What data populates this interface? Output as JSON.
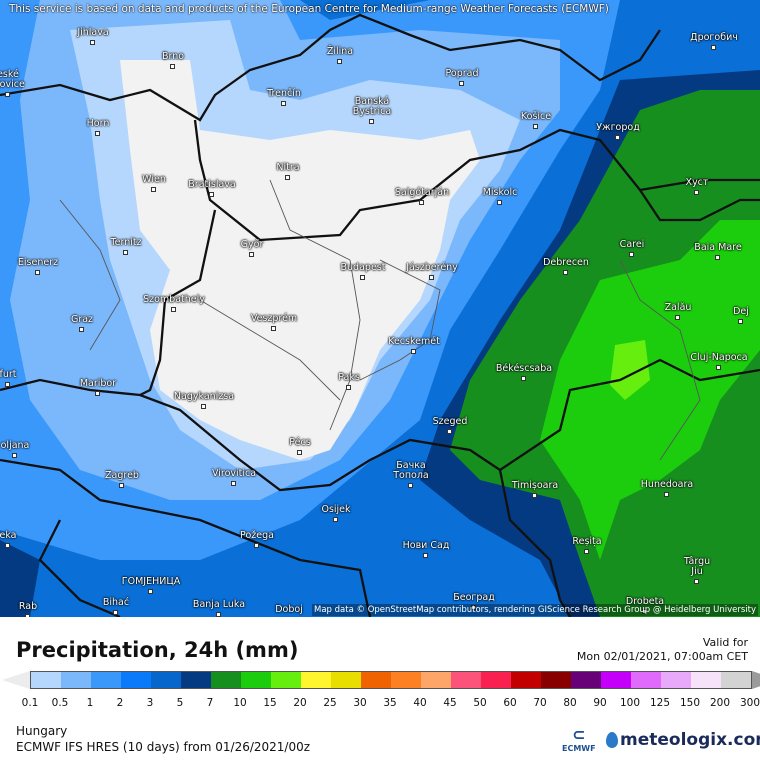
{
  "map": {
    "notice": "This service is based on data and products of the European Centre for Medium-range Weather Forecasts (ECMWF)",
    "attribution": "Map data © OpenStreetMap contributors, rendering GIScience Research Group @ Heidelberg University",
    "cities": [
      "Jihlava",
      "Brno",
      "Žilina",
      "Poprad",
      "Дрогобич",
      "Trenčín",
      "Banská\nBystrica",
      "Košice",
      "Ужгород",
      "Horn",
      "Wien",
      "Bratislava",
      "Nitra",
      "Salgótarján",
      "Miskolc",
      "Хуст",
      "Ternitz",
      "Győr",
      "Carei",
      "Baia Mare",
      "Eisenerz",
      "Budapest",
      "Jászberény",
      "Debrecen",
      "Szombathely",
      "Graz",
      "Veszprém",
      "Zalău",
      "Dej",
      "Kecskemét",
      "Cluj-Napoca",
      "Maribor",
      "Paks",
      "Békéscsaba",
      "Nagykanizsa",
      "Szeged",
      "oljana",
      "Pécs",
      "Бачка\nТопола",
      "Zagreb",
      "Virovitica",
      "Timișoara",
      "Hunedoara",
      "Osijek",
      "Požega",
      "Нови Сад",
      "Reșița",
      "Târgu\nJiu",
      "ГОМЈЕНИЦА",
      "Bihać",
      "Banja Luka",
      "Doboj",
      "Београд",
      "Drobeta",
      "Rab",
      "eské\nejovice",
      "furt",
      "eka"
    ]
  },
  "legend": {
    "title": "Precipitation, 24h (mm)",
    "valid_label": "Valid for",
    "valid_time": "Mon 02/01/2021, 07:00am CET",
    "colors": [
      "#b5d7fd",
      "#7bb8fb",
      "#3b98fb",
      "#0a7afa",
      "#0766cc",
      "#033a82",
      "#178f1f",
      "#1ccd0e",
      "#66ee0e",
      "#fff52f",
      "#e8de00",
      "#ef6400",
      "#fd8022",
      "#fea66a",
      "#fb5379",
      "#f8214f",
      "#c20000",
      "#890000",
      "#680078",
      "#c400fb",
      "#e06afc",
      "#e9a9fa",
      "#f6e3fa",
      "#d3d3d3"
    ],
    "under_color": "#ececec",
    "over_color": "#9a9a9a",
    "ticks": [
      "0.1",
      "0.5",
      "1",
      "2",
      "3",
      "5",
      "7",
      "10",
      "15",
      "20",
      "25",
      "30",
      "35",
      "40",
      "45",
      "50",
      "60",
      "70",
      "80",
      "90",
      "100",
      "125",
      "150",
      "200",
      "300"
    ]
  },
  "footer": {
    "region": "Hungary",
    "model": "ECMWF IFS HRES (10 days) from  01/26/2021/00z",
    "ecmwf_label": "ECMWF",
    "site": "meteologix.com"
  }
}
